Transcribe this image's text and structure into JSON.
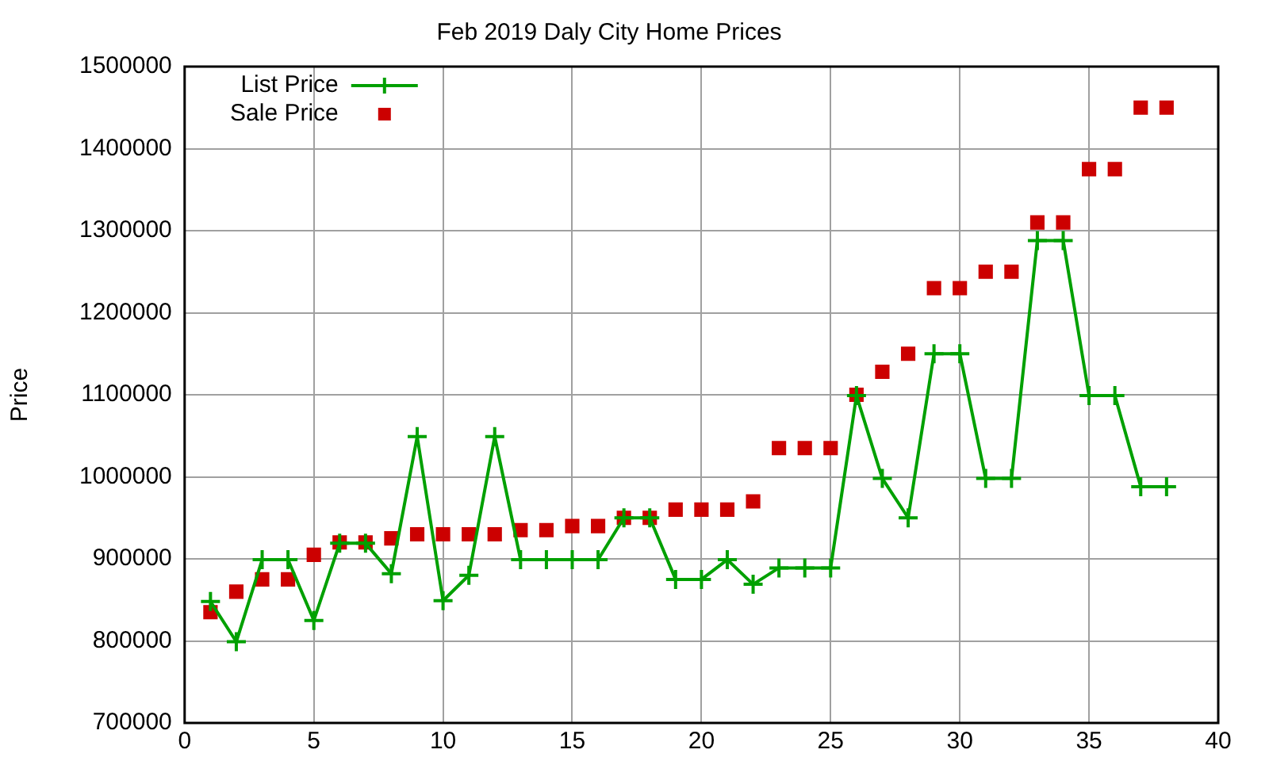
{
  "chart_data": {
    "type": "line",
    "title": "Feb 2019 Daly City Home Prices",
    "ylabel": "Price",
    "x": [
      1,
      2,
      3,
      4,
      5,
      6,
      7,
      8,
      9,
      10,
      11,
      12,
      13,
      14,
      15,
      16,
      17,
      18,
      19,
      20,
      21,
      22,
      23,
      24,
      25,
      26,
      27,
      28,
      29,
      30,
      31,
      32,
      33,
      34,
      35,
      36,
      37,
      38
    ],
    "series": [
      {
        "name": "List Price",
        "marker": "cross",
        "color": "#00a000",
        "values": [
          848000,
          799000,
          899000,
          899000,
          825000,
          919000,
          919000,
          882000,
          1049000,
          849000,
          880000,
          1049000,
          899000,
          899000,
          899000,
          899000,
          950000,
          950000,
          875000,
          875000,
          899000,
          869000,
          889000,
          889000,
          889000,
          1099000,
          998000,
          950000,
          1150000,
          1150000,
          998000,
          998000,
          1288000,
          1288000,
          1099000,
          1099000,
          988000,
          988000
        ]
      },
      {
        "name": "Sale Price",
        "type": "scatter",
        "marker": "square",
        "color": "#cc0000",
        "values": [
          835000,
          860000,
          875000,
          875000,
          905000,
          920000,
          920000,
          925000,
          930000,
          930000,
          930000,
          930000,
          935000,
          935000,
          940000,
          940000,
          950000,
          950000,
          960000,
          960000,
          960000,
          970000,
          1035000,
          1035000,
          1035000,
          1100000,
          1128000,
          1150000,
          1230000,
          1230000,
          1250000,
          1250000,
          1310000,
          1310000,
          1375000,
          1375000,
          1450000,
          1450000
        ]
      }
    ],
    "xlim": [
      0,
      40
    ],
    "xticks": [
      0,
      5,
      10,
      15,
      20,
      25,
      30,
      35,
      40
    ],
    "ylim": [
      700000,
      1500000
    ],
    "yticks": [
      700000,
      800000,
      900000,
      1000000,
      1100000,
      1200000,
      1300000,
      1400000,
      1500000
    ],
    "grid": true,
    "legend": "top left"
  }
}
